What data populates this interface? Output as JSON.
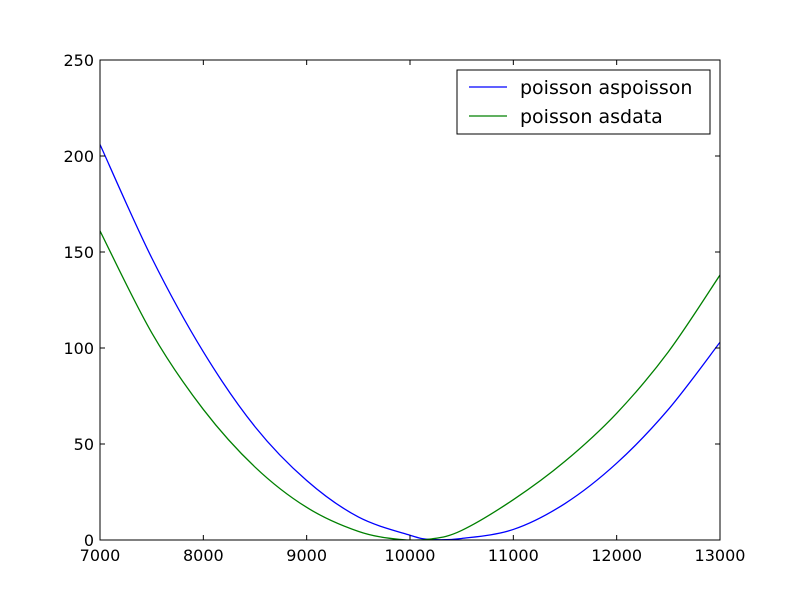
{
  "chart_data": {
    "type": "line",
    "title": "",
    "xlabel": "",
    "ylabel": "",
    "xlim": [
      7000,
      13000
    ],
    "ylim": [
      0,
      250
    ],
    "x_ticks": [
      7000,
      8000,
      9000,
      10000,
      11000,
      12000,
      13000
    ],
    "x_tick_labels": [
      "7000",
      "8000",
      "9000",
      "10000",
      "11000",
      "12000",
      "13000"
    ],
    "y_ticks": [
      0,
      50,
      100,
      150,
      200,
      250
    ],
    "y_tick_labels": [
      "0",
      "50",
      "100",
      "150",
      "200",
      "250"
    ],
    "grid": false,
    "legend_position": "top-right",
    "series": [
      {
        "name": "poisson aspoisson",
        "color": "#0000ff",
        "x": [
          7000,
          7500,
          8000,
          8500,
          9000,
          9500,
          10000,
          10200,
          10500,
          11000,
          11500,
          12000,
          12500,
          13000
        ],
        "y": [
          206,
          147,
          98,
          59,
          31,
          12,
          2.5,
          0.3,
          0.8,
          5.5,
          19,
          40,
          68,
          103
        ]
      },
      {
        "name": "poisson asdata",
        "color": "#008000",
        "x": [
          7000,
          7500,
          8000,
          8500,
          9000,
          9500,
          9900,
          10200,
          10500,
          11000,
          11500,
          12000,
          12500,
          13000
        ],
        "y": [
          161,
          108,
          68,
          38,
          17,
          4.5,
          0.3,
          0.5,
          5,
          21,
          41,
          66,
          98,
          138
        ]
      }
    ]
  }
}
